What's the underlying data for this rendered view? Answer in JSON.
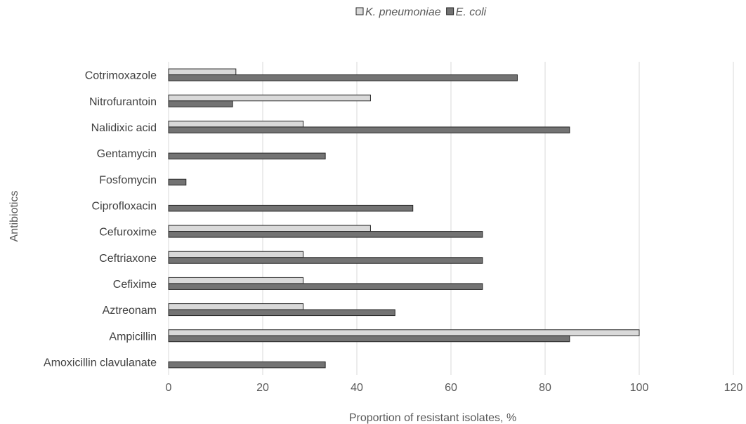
{
  "chart_data": {
    "type": "bar",
    "orientation": "horizontal",
    "xlabel": "Proportion of resistant isolates, %",
    "ylabel": "Antibiotics",
    "xlim": [
      0,
      120
    ],
    "xticks": [
      0,
      20,
      40,
      60,
      80,
      100,
      120
    ],
    "grid": true,
    "legend_position": "top",
    "categories": [
      "Cotrimoxazole",
      "Nitrofurantoin",
      "Nalidixic acid",
      "Gentamycin",
      "Fosfomycin",
      "Ciprofloxacin",
      "Cefuroxime",
      "Ceftriaxone",
      "Cefixime",
      "Aztreonam",
      "Ampicillin",
      "Amoxicillin clavulanate"
    ],
    "series": [
      {
        "name": "K. pneumoniae",
        "color": "#d9d9d9",
        "values": [
          14.3,
          42.9,
          28.6,
          0,
          0,
          0,
          42.9,
          28.6,
          28.6,
          28.6,
          100,
          0
        ]
      },
      {
        "name": "E. coli",
        "color": "#737373",
        "values": [
          74.1,
          13.6,
          85.2,
          33.3,
          3.7,
          51.9,
          66.7,
          66.7,
          66.7,
          48.1,
          85.2,
          33.3
        ]
      }
    ]
  }
}
